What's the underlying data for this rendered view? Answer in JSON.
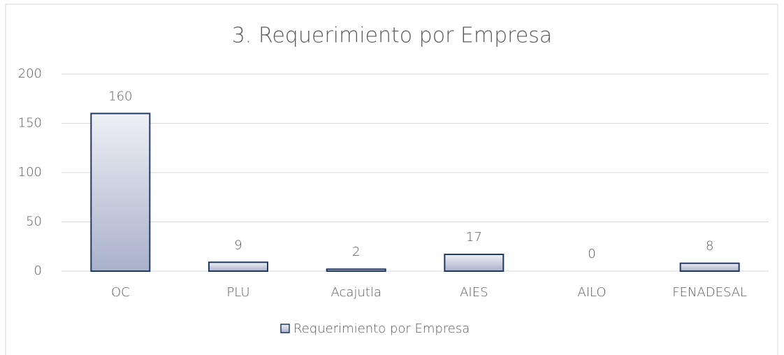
{
  "chart_data": {
    "type": "bar",
    "title": "3. Requerimiento por Empresa",
    "categories": [
      "OC",
      "PLU",
      "Acajutla",
      "AIES",
      "AILO",
      "FENADESAL"
    ],
    "series": [
      {
        "name": "Requerimiento por Empresa",
        "color": "#a9b1cb",
        "values": [
          160,
          9,
          2,
          17,
          0,
          8
        ]
      }
    ],
    "ylim": [
      0,
      200
    ],
    "yticks": [
      0,
      50,
      100,
      150,
      200
    ],
    "grid": true,
    "legend": "bottom"
  }
}
